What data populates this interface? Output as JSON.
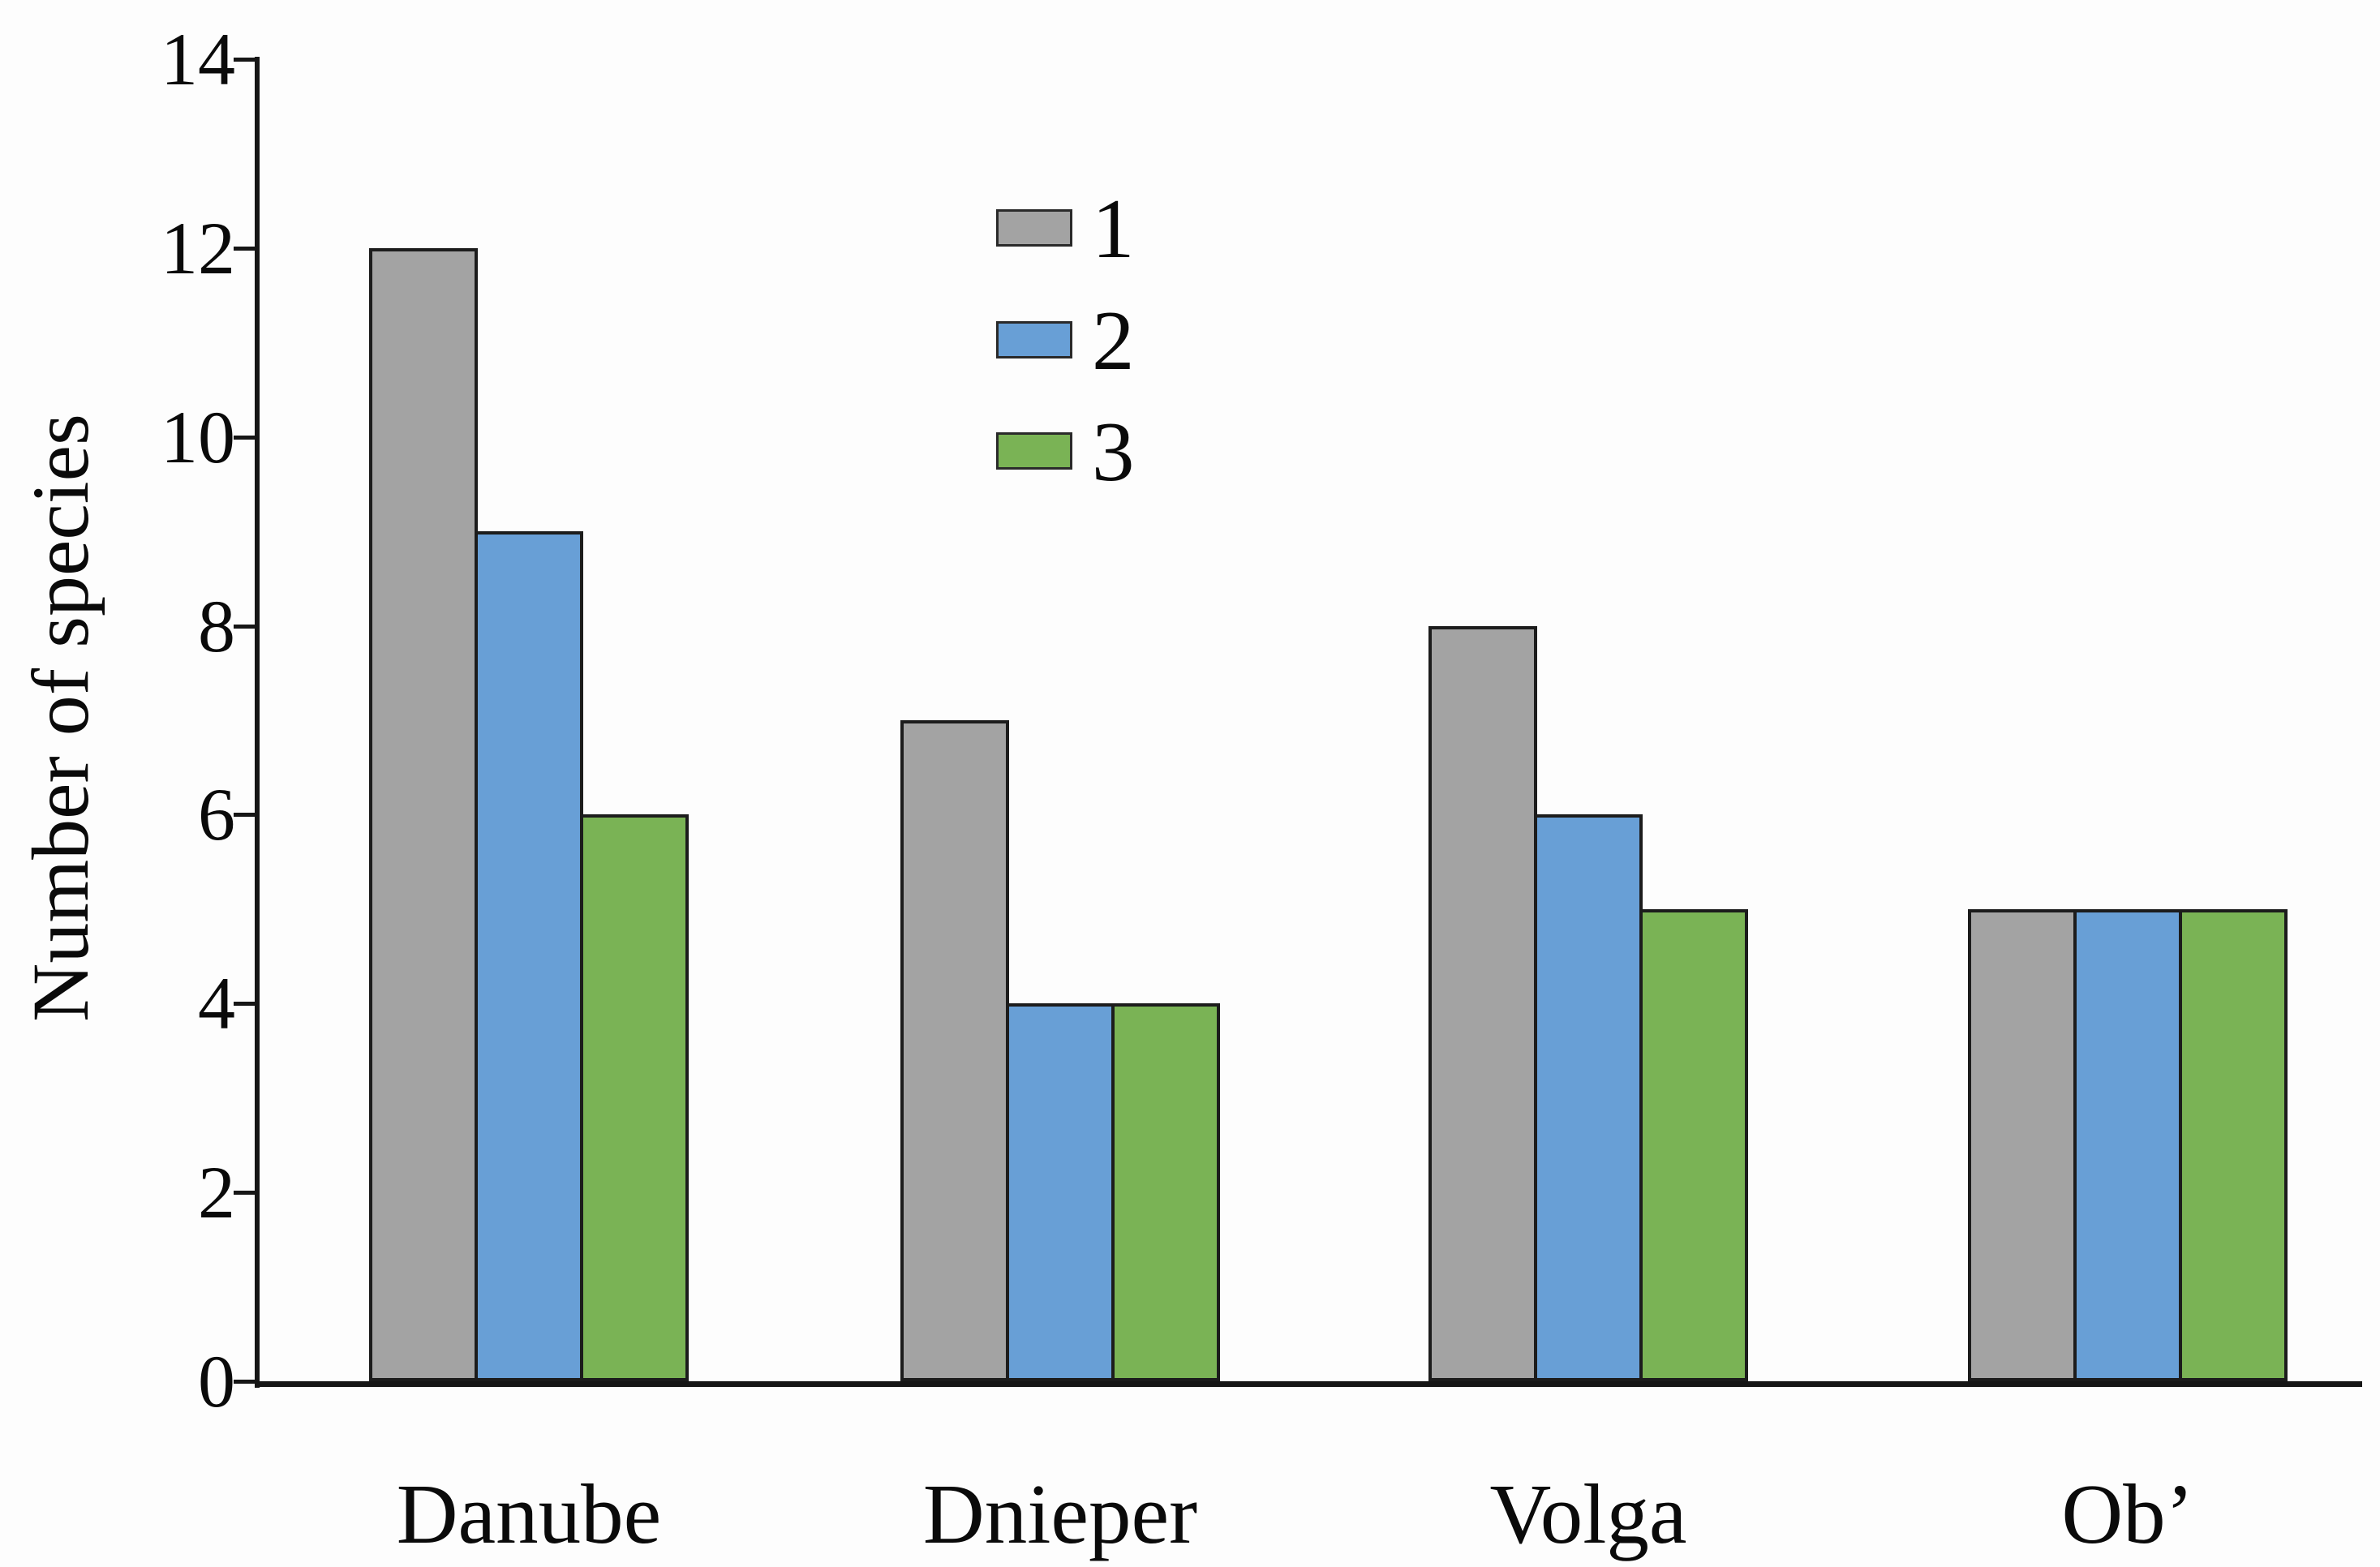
{
  "chart_data": {
    "type": "bar",
    "title": "",
    "xlabel": "",
    "ylabel": "Number of species",
    "ylim": [
      0,
      14
    ],
    "yticks": [
      0,
      2,
      4,
      6,
      8,
      10,
      12,
      14
    ],
    "categories": [
      "Danube",
      "Dnieper",
      "Volga",
      "Ob’"
    ],
    "series": [
      {
        "name": "1",
        "color": "#a3a3a3",
        "values": [
          12,
          7,
          8,
          5
        ]
      },
      {
        "name": "2",
        "color": "#689fd6",
        "values": [
          9,
          4,
          6,
          5
        ]
      },
      {
        "name": "3",
        "color": "#7ab355",
        "values": [
          6,
          4,
          5,
          5
        ]
      }
    ],
    "legend": {
      "entries": [
        "1",
        "2",
        "3"
      ],
      "position": "upper-center"
    },
    "grid": false,
    "background": "#fdfdfd",
    "bar_border_color": "#1c1c1c",
    "axis_color": "#161616",
    "text_color": "#0a0a0a"
  }
}
